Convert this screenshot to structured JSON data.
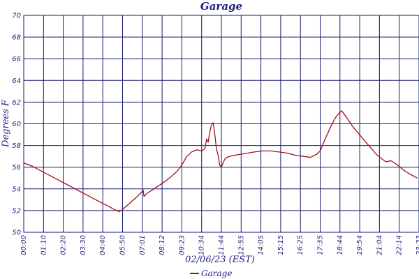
{
  "chart_data": {
    "type": "line",
    "title": "Garage",
    "xlabel": "02/06/23 (EST)",
    "ylabel": "Degrees F",
    "ylim": [
      50,
      70
    ],
    "yticks": [
      "50",
      "52",
      "54",
      "56",
      "58",
      "60",
      "62",
      "64",
      "66",
      "68",
      "70"
    ],
    "xticks": [
      "00:00",
      "01:10",
      "02:20",
      "03:30",
      "04:40",
      "05:50",
      "07:01",
      "08:12",
      "09:23",
      "10:34",
      "11:44",
      "12:55",
      "14:05",
      "15:15",
      "16:25",
      "17:35",
      "18:44",
      "19:54",
      "21:04",
      "22:14",
      "23:23"
    ],
    "grid": true,
    "legend": "bottom",
    "series": [
      {
        "name": "Garage",
        "color": "#a50f1b",
        "x_hours": [
          0,
          0.5,
          1.0,
          1.5,
          2.0,
          2.5,
          3.0,
          3.5,
          4.0,
          4.5,
          5.0,
          5.5,
          5.8,
          6.0,
          6.3,
          6.6,
          6.9,
          7.1,
          7.25,
          7.3,
          7.5,
          7.8,
          8.2,
          8.6,
          9.0,
          9.3,
          9.6,
          9.9,
          10.2,
          10.5,
          10.8,
          11.0,
          11.1,
          11.2,
          11.3,
          11.4,
          11.5,
          11.6,
          11.7,
          11.8,
          11.9,
          12.0,
          12.1,
          12.2,
          12.3,
          12.5,
          12.8,
          13.2,
          13.6,
          14.0,
          14.5,
          15.0,
          15.5,
          16.0,
          16.5,
          17.0,
          17.4,
          17.8,
          18.0,
          18.3,
          18.6,
          18.9,
          19.1,
          19.3,
          19.6,
          20.0,
          20.5,
          21.0,
          21.4,
          21.8,
          22.0,
          22.3,
          22.6,
          23.0,
          23.4,
          23.9
        ],
        "values": [
          56.4,
          56.1,
          55.7,
          55.3,
          54.9,
          54.5,
          54.1,
          53.7,
          53.3,
          52.9,
          52.5,
          52.1,
          51.9,
          52.1,
          52.5,
          52.9,
          53.3,
          53.6,
          53.9,
          53.3,
          53.6,
          53.9,
          54.3,
          54.7,
          55.2,
          55.6,
          56.2,
          57.0,
          57.4,
          57.6,
          57.5,
          57.7,
          58.6,
          58.3,
          59.3,
          59.9,
          60.1,
          59.0,
          57.7,
          57.1,
          56.2,
          56.0,
          56.4,
          56.7,
          56.9,
          57.0,
          57.1,
          57.2,
          57.3,
          57.4,
          57.5,
          57.5,
          57.4,
          57.3,
          57.1,
          57.0,
          56.9,
          57.2,
          57.5,
          58.6,
          59.6,
          60.5,
          60.9,
          61.2,
          60.6,
          59.7,
          58.8,
          57.9,
          57.2,
          56.7,
          56.5,
          56.6,
          56.3,
          55.8,
          55.4,
          55.0
        ]
      }
    ]
  }
}
